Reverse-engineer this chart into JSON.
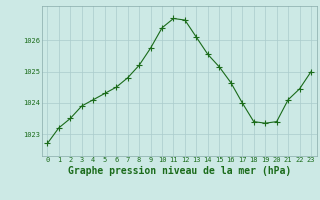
{
  "x": [
    0,
    1,
    2,
    3,
    4,
    5,
    6,
    7,
    8,
    9,
    10,
    11,
    12,
    13,
    14,
    15,
    16,
    17,
    18,
    19,
    20,
    21,
    22,
    23
  ],
  "y": [
    1022.7,
    1023.2,
    1023.5,
    1023.9,
    1024.1,
    1024.3,
    1024.5,
    1024.8,
    1025.2,
    1025.75,
    1026.4,
    1026.7,
    1026.65,
    1026.1,
    1025.55,
    1025.15,
    1024.65,
    1024.0,
    1023.4,
    1023.35,
    1023.4,
    1024.1,
    1024.45,
    1025.0
  ],
  "line_color": "#1a6b1a",
  "marker": "+",
  "marker_size": 4,
  "marker_linewidth": 0.8,
  "line_width": 0.8,
  "bg_color": "#cce9e5",
  "grid_color": "#aacccc",
  "title": "Graphe pression niveau de la mer (hPa)",
  "title_color": "#1a6b1a",
  "title_fontsize": 7,
  "ylabel_ticks": [
    1023,
    1024,
    1025,
    1026
  ],
  "xlabel_ticks": [
    0,
    1,
    2,
    3,
    4,
    5,
    6,
    7,
    8,
    9,
    10,
    11,
    12,
    13,
    14,
    15,
    16,
    17,
    18,
    19,
    20,
    21,
    22,
    23
  ],
  "tick_fontsize": 5,
  "ylim": [
    1022.3,
    1027.1
  ],
  "xlim": [
    -0.5,
    23.5
  ],
  "spine_color": "#88aaaa"
}
